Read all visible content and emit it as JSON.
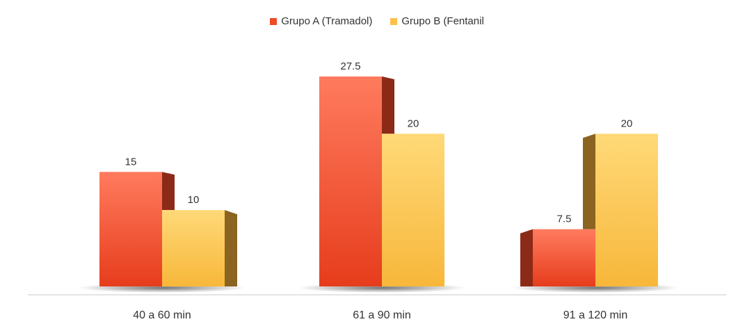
{
  "chart_data": {
    "type": "bar",
    "categories": [
      "40 a 60 min",
      "61 a 90 min",
      "91 a 120 min"
    ],
    "series": [
      {
        "name": "Grupo A (Tramadol)",
        "values": [
          15,
          27.5,
          7.5
        ],
        "value_labels": [
          "15",
          "27.5",
          "7.5"
        ],
        "color": "#f0492b"
      },
      {
        "name": "Grupo B (Fentanil",
        "values": [
          10,
          20,
          20
        ],
        "value_labels": [
          "10",
          "20",
          "20"
        ],
        "color": "#fbc14b"
      }
    ],
    "title": "",
    "xlabel": "",
    "ylabel": "",
    "ylim": [
      0,
      30
    ],
    "grid": false,
    "legend_position": "top-center"
  },
  "colors": {
    "series_a_top": "#ff7b5e",
    "series_a_bottom": "#e63d1c",
    "series_a_side": "#8c2a18",
    "series_b_top": "#ffd978",
    "series_b_bottom": "#f7b73a",
    "series_b_side": "#8a6420",
    "baseline": "#c8c8c8",
    "text": "#333333"
  }
}
